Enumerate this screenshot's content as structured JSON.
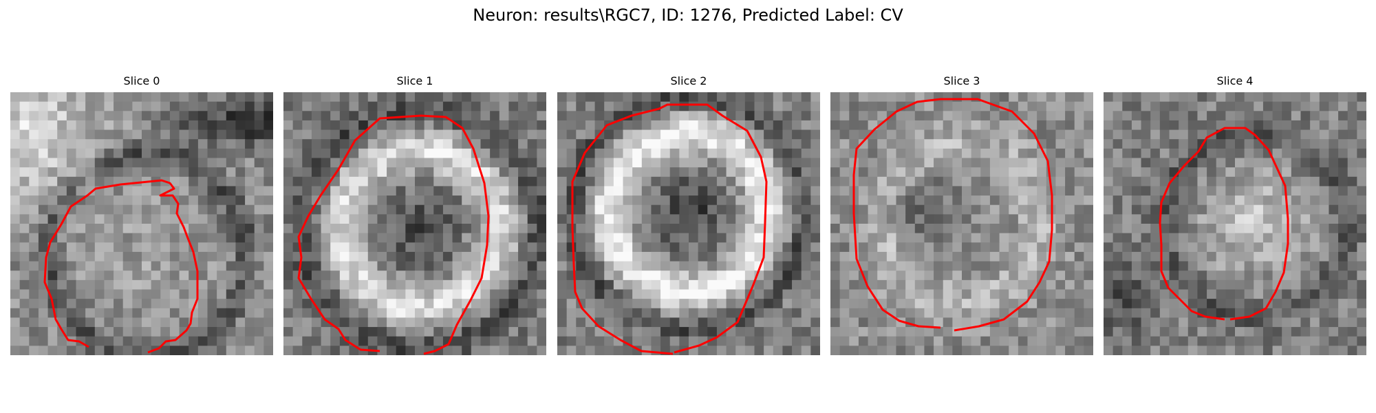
{
  "figure": {
    "title": "Neuron: results\\RGC7, ID: 1276, Predicted Label: CV"
  },
  "panels": [
    {
      "title": "Slice 0",
      "contour_color": "#ff0000",
      "image_description": "Noisy grayscale EM patch of a round cell body; bright wash in upper-left, dark band at top; red contour traces the cell boundary"
    },
    {
      "title": "Slice 1",
      "contour_color": "#ff0000",
      "image_description": "Noisy grayscale patch showing a bright ring with darker center; red octagonal contour around the ring"
    },
    {
      "title": "Slice 2",
      "contour_color": "#ff0000",
      "image_description": "Noisy grayscale patch with a prominent bright ring and dark core; red contour surrounding it"
    },
    {
      "title": "Slice 3",
      "contour_color": "#ff0000",
      "image_description": "Noisy grayscale patch with a faint ring; large red octagonal contour"
    },
    {
      "title": "Slice 4",
      "contour_color": "#ff0000",
      "image_description": "Noisy grayscale patch with a bright central blob; smaller red contour"
    }
  ]
}
